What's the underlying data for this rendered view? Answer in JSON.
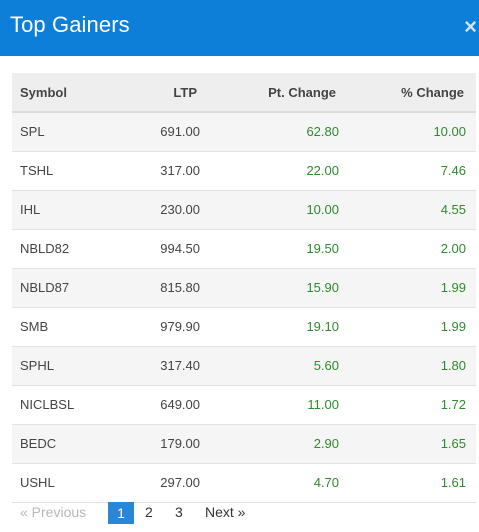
{
  "modal": {
    "title": "Top Gainers",
    "close_label": "×"
  },
  "table": {
    "columns": [
      "Symbol",
      "LTP",
      "Pt. Change",
      "% Change"
    ],
    "rows": [
      {
        "symbol": "SPL",
        "ltp": "691.00",
        "pt_change": "62.80",
        "pct_change": "10.00"
      },
      {
        "symbol": "TSHL",
        "ltp": "317.00",
        "pt_change": "22.00",
        "pct_change": "7.46"
      },
      {
        "symbol": "IHL",
        "ltp": "230.00",
        "pt_change": "10.00",
        "pct_change": "4.55"
      },
      {
        "symbol": "NBLD82",
        "ltp": "994.50",
        "pt_change": "19.50",
        "pct_change": "2.00"
      },
      {
        "symbol": "NBLD87",
        "ltp": "815.80",
        "pt_change": "15.90",
        "pct_change": "1.99"
      },
      {
        "symbol": "SMB",
        "ltp": "979.90",
        "pt_change": "19.10",
        "pct_change": "1.99"
      },
      {
        "symbol": "SPHL",
        "ltp": "317.40",
        "pt_change": "5.60",
        "pct_change": "1.80"
      },
      {
        "symbol": "NICLBSL",
        "ltp": "649.00",
        "pt_change": "11.00",
        "pct_change": "1.72"
      },
      {
        "symbol": "BEDC",
        "ltp": "179.00",
        "pt_change": "2.90",
        "pct_change": "1.65"
      },
      {
        "symbol": "USHL",
        "ltp": "297.00",
        "pt_change": "4.70",
        "pct_change": "1.61"
      }
    ]
  },
  "pagination": {
    "previous_label": "« Previous",
    "pages": [
      "1",
      "2",
      "3"
    ],
    "active_page": "1",
    "next_label": "Next »"
  },
  "colors": {
    "header_bg": "#0e7fd8",
    "positive": "#2e8b2e",
    "active_page_bg": "#2a86d6"
  }
}
